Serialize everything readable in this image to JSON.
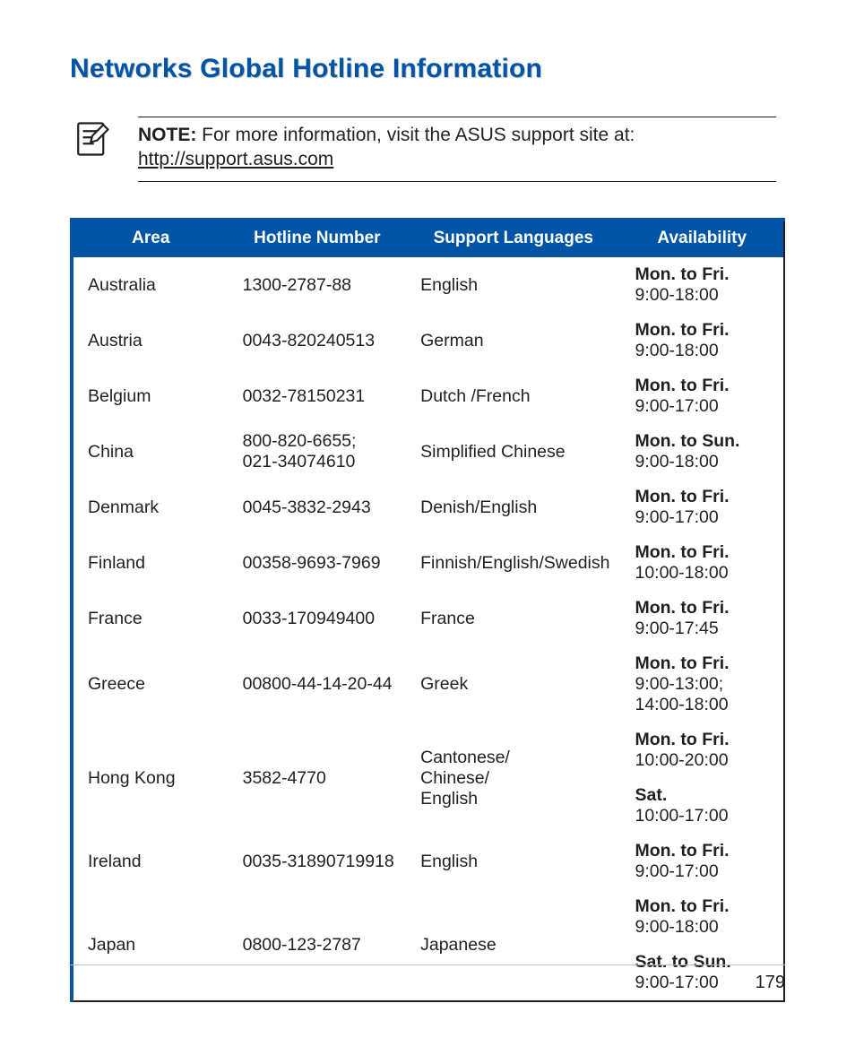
{
  "heading": "Networks Global Hotline Information",
  "note": {
    "bold": "NOTE:",
    "text": " For more information, visit the ASUS support site at:",
    "link": "http://support.asus.com"
  },
  "table": {
    "headers": {
      "area": "Area",
      "number": "Hotline Number",
      "lang": "Support Languages",
      "avail": "Availability"
    },
    "header_bg": "#0054a6",
    "header_fg": "#ffffff",
    "border_accent": "#0054a6",
    "rows": [
      {
        "area": "Australia",
        "number": "1300-2787-88",
        "lang": "English",
        "avail": [
          {
            "days": "Mon. to Fri.",
            "hours": "9:00-18:00"
          }
        ]
      },
      {
        "area": "Austria",
        "number": "0043-820240513",
        "lang": "German",
        "avail": [
          {
            "days": "Mon. to Fri.",
            "hours": "9:00-18:00"
          }
        ]
      },
      {
        "area": "Belgium",
        "number": "0032-78150231",
        "lang": "Dutch /French",
        "avail": [
          {
            "days": "Mon. to Fri.",
            "hours": "9:00-17:00"
          }
        ]
      },
      {
        "area": "China",
        "number": "800-820-6655; 021-34074610",
        "lang": "Simplified Chinese",
        "avail": [
          {
            "days": "Mon. to Sun.",
            "hours": "9:00-18:00"
          }
        ]
      },
      {
        "area": "Denmark",
        "number": "0045-3832-2943",
        "lang": "Denish/English",
        "avail": [
          {
            "days": "Mon. to Fri.",
            "hours": "9:00-17:00"
          }
        ]
      },
      {
        "area": "Finland",
        "number": "00358-9693-7969",
        "lang": "Finnish/English/Swedish",
        "avail": [
          {
            "days": "Mon. to Fri.",
            "hours": "10:00-18:00"
          }
        ]
      },
      {
        "area": "France",
        "number": "0033-170949400",
        "lang": "France",
        "avail": [
          {
            "days": "Mon. to Fri.",
            "hours": "9:00-17:45"
          }
        ]
      },
      {
        "area": "Greece",
        "number": "00800-44-14-20-44",
        "lang": "Greek",
        "avail": [
          {
            "days": "Mon. to Fri.",
            "hours": "9:00-13:00; 14:00-18:00"
          }
        ]
      },
      {
        "area": "Hong Kong",
        "number": "3582-4770",
        "lang": "Cantonese/\nChinese/\nEnglish",
        "avail": [
          {
            "days": "Mon. to Fri.",
            "hours": "10:00-20:00"
          },
          {
            "days": "Sat.",
            "hours": "10:00-17:00"
          }
        ]
      },
      {
        "area": "Ireland",
        "number": "0035-31890719918",
        "lang": "English",
        "avail": [
          {
            "days": "Mon. to Fri.",
            "hours": "9:00-17:00"
          }
        ]
      },
      {
        "area": "Japan",
        "number": "0800-123-2787",
        "lang": "Japanese",
        "avail": [
          {
            "days": "Mon. to Fri.",
            "hours": "9:00-18:00"
          },
          {
            "days": "Sat. to Sun.",
            "hours": "9:00-17:00"
          }
        ]
      }
    ]
  },
  "page_number": "179",
  "colors": {
    "heading": "#0054a6",
    "text": "#231f20",
    "footer_rule": "#bfbfbf"
  }
}
